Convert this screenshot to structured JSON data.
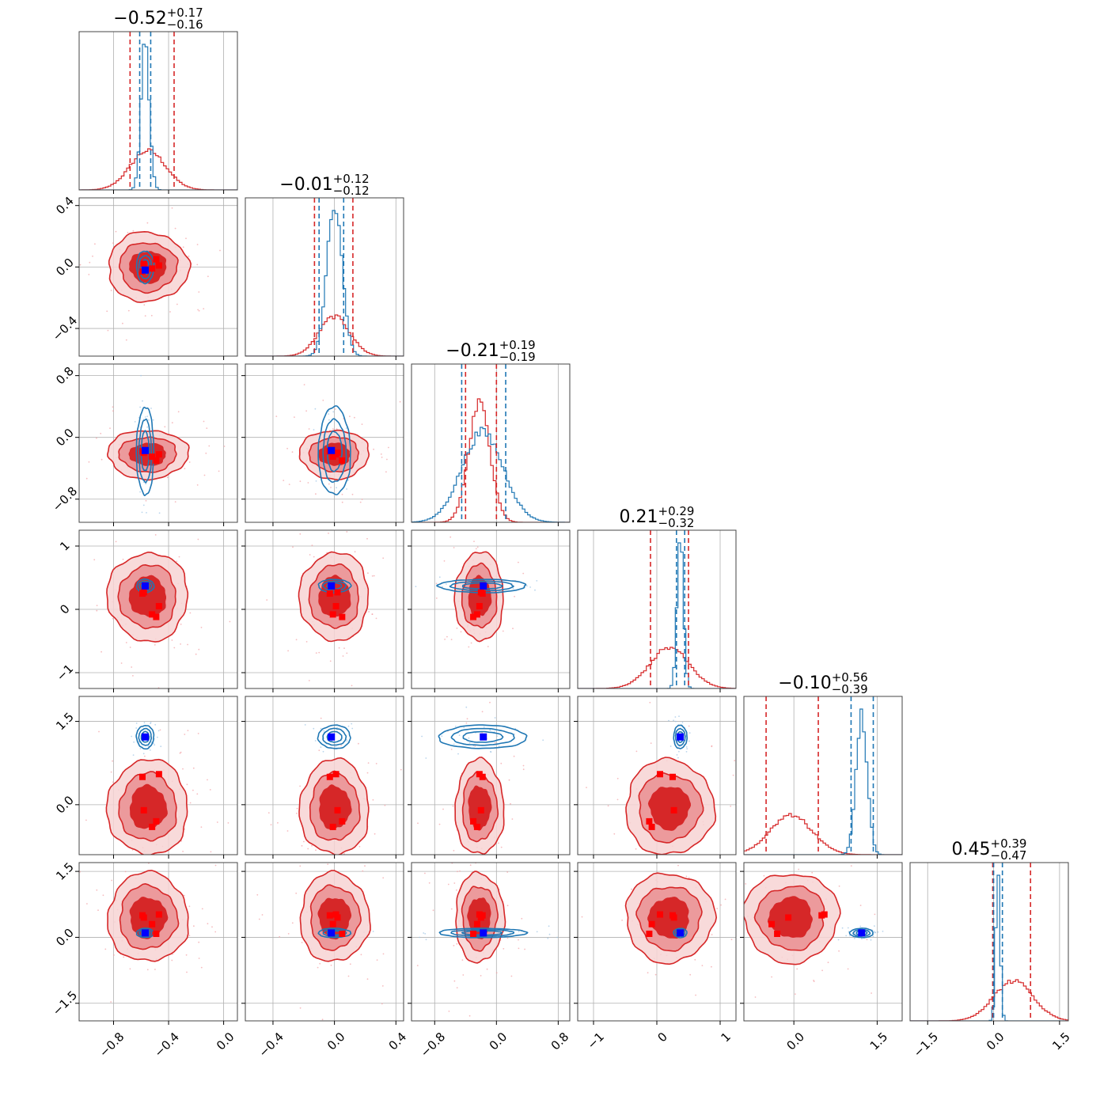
{
  "chart_data": {
    "type": "corner",
    "dimensions": 6,
    "series": [
      {
        "color": "#d62728"
      },
      {
        "color": "#1f77b4"
      }
    ],
    "truth_marker_color": "#0000ff",
    "sample_marker_color": "#ff0000",
    "grid": true,
    "params": [
      {
        "title": {
          "median": "−0.52",
          "upper": "+0.17",
          "lower": "−0.16"
        },
        "range": [
          -1.05,
          0.1
        ],
        "ticks": [
          -0.8,
          -0.4,
          0.0
        ],
        "tick_labels": [
          "−0.8",
          "−0.4",
          "0.0"
        ],
        "red": {
          "mean": -0.55,
          "sd": 0.13
        },
        "blue": {
          "mean": -0.57,
          "sd": 0.03
        },
        "red_quantiles": [
          -0.68,
          -0.36
        ],
        "blue_quantiles": [
          -0.61,
          -0.53
        ],
        "truth": -0.57,
        "red_points": [
          -0.59,
          -0.58,
          -0.52,
          -0.49,
          -0.47
        ]
      },
      {
        "title": {
          "median": "−0.01",
          "upper": "+0.12",
          "lower": "−0.12"
        },
        "range": [
          -0.58,
          0.45
        ],
        "ticks": [
          -0.4,
          0.0,
          0.4
        ],
        "tick_labels": [
          "−0.4",
          "0.0",
          "0.4"
        ],
        "red": {
          "mean": 0.0,
          "sd": 0.1
        },
        "blue": {
          "mean": 0.0,
          "sd": 0.05
        },
        "red_quantiles": [
          -0.13,
          0.12
        ],
        "blue_quantiles": [
          -0.1,
          0.06
        ],
        "truth": -0.02,
        "red_points": [
          -0.03,
          0.02,
          -0.01,
          0.05,
          0.01
        ]
      },
      {
        "title": {
          "median": "−0.21",
          "upper": "+0.19",
          "lower": "−0.19"
        },
        "range": [
          -1.1,
          0.95
        ],
        "ticks": [
          -0.8,
          0.0,
          0.8
        ],
        "tick_labels": [
          "−0.8",
          "0.0",
          "0.8"
        ],
        "red": {
          "mean": -0.22,
          "sd": 0.14
        },
        "blue": {
          "mean": -0.18,
          "sd": 0.27
        },
        "red_quantiles": [
          -0.4,
          0.0
        ],
        "blue_quantiles": [
          -0.45,
          0.12
        ],
        "truth": -0.17,
        "red_points": [
          -0.18,
          -0.2,
          -0.25,
          -0.3,
          -0.22
        ]
      },
      {
        "title": {
          "median": "0.21",
          "upper": "+0.29",
          "lower": "−0.32"
        },
        "range": [
          -1.25,
          1.25
        ],
        "ticks": [
          -1,
          0,
          1
        ],
        "tick_labels": [
          "−1",
          "0",
          "1"
        ],
        "red": {
          "mean": 0.2,
          "sd": 0.31
        },
        "blue": {
          "mean": 0.37,
          "sd": 0.05
        },
        "red_quantiles": [
          -0.1,
          0.5
        ],
        "blue_quantiles": [
          0.31,
          0.44
        ],
        "truth": 0.37,
        "red_points": [
          0.25,
          0.27,
          -0.08,
          -0.12,
          0.05
        ]
      },
      {
        "title": {
          "median": "−0.10",
          "upper": "+0.56",
          "lower": "−0.39"
        },
        "range": [
          -0.9,
          1.95
        ],
        "ticks": [
          0.0,
          1.5
        ],
        "tick_labels": [
          "0.0",
          "1.5"
        ],
        "red": {
          "mean": -0.05,
          "sd": 0.38
        },
        "blue": {
          "mean": 1.22,
          "sd": 0.1
        },
        "red_quantiles": [
          -0.5,
          0.44
        ],
        "blue_quantiles": [
          1.03,
          1.43
        ],
        "truth": 1.22,
        "red_points": [
          0.5,
          -0.1,
          -0.4,
          -0.3,
          0.55
        ]
      },
      {
        "title": {
          "median": "0.45",
          "upper": "+0.39",
          "lower": "−0.47"
        },
        "range": [
          -1.9,
          1.7
        ],
        "ticks": [
          -1.5,
          0.0,
          1.5
        ],
        "tick_labels": [
          "−1.5",
          "0.0",
          "1.5"
        ],
        "red": {
          "mean": 0.45,
          "sd": 0.45
        },
        "blue": {
          "mean": 0.1,
          "sd": 0.05
        },
        "red_quantiles": [
          -0.02,
          0.84
        ],
        "blue_quantiles": [
          0.0,
          0.2
        ],
        "truth": 0.1,
        "red_points": [
          0.5,
          0.45,
          0.3,
          0.08,
          0.52
        ]
      }
    ]
  }
}
